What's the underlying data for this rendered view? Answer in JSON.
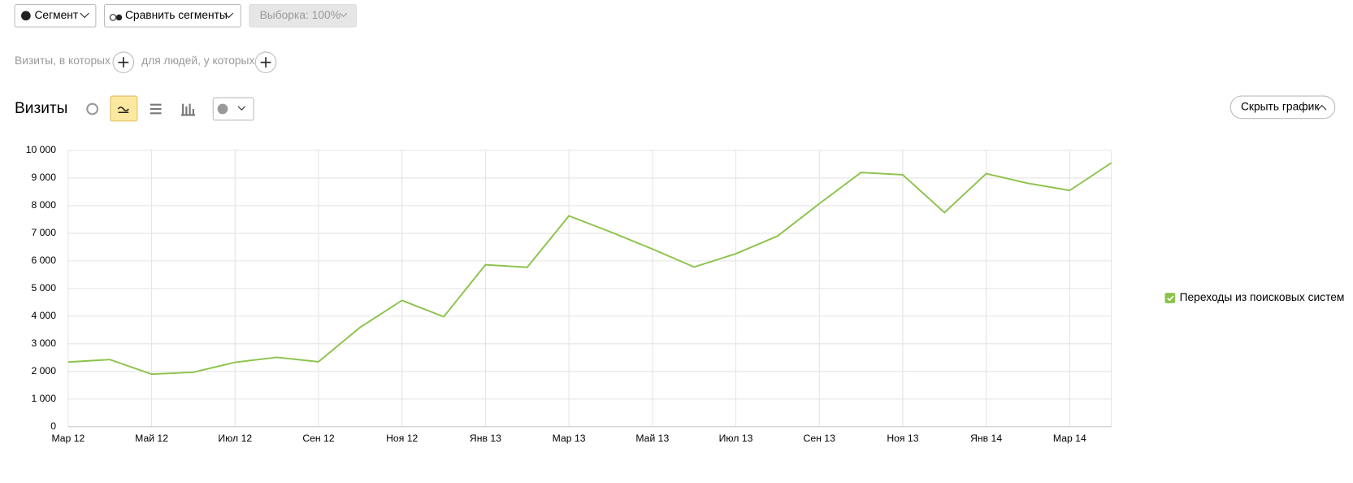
{
  "toolbar": {
    "segment": "Сегмент",
    "compare": "Сравнить сегменты",
    "sample": "Выборка: 100%"
  },
  "filters": {
    "visits": "Визиты, в которых",
    "people": "для людей, у которых"
  },
  "report": {
    "title": "Визиты",
    "hide_button": "Скрыть график"
  },
  "chart_data": {
    "type": "line",
    "categories": [
      "Мар 12",
      null,
      "Май 12",
      null,
      "Июл 12",
      null,
      "Сен 12",
      null,
      "Ноя 12",
      null,
      "Янв 13",
      null,
      "Мар 13",
      null,
      "Май 13",
      null,
      "Июл 13",
      null,
      "Сен 13",
      null,
      "Ноя 13",
      null,
      "Янв 14",
      null,
      "Мар 14",
      null
    ],
    "series": [
      {
        "name": "Переходы из поисковых систем",
        "color": "#8bc34a",
        "values": [
          2340,
          2430,
          1900,
          1970,
          2330,
          2510,
          2350,
          3600,
          4570,
          3980,
          5860,
          5770,
          7630,
          7050,
          6430,
          5780,
          6260,
          6900,
          8070,
          9200,
          9120,
          7750,
          9160,
          8810,
          8550,
          9550
        ]
      }
    ],
    "ylim": [
      0,
      10000
    ],
    "yticks": [
      0,
      {
        "value": 1000,
        "label": "1 000"
      },
      {
        "value": 2000,
        "label": "2 000"
      },
      {
        "value": 3000,
        "label": "3 000"
      },
      {
        "value": 4000,
        "label": "4 000"
      },
      {
        "value": 5000,
        "label": "5 000"
      },
      {
        "value": 6000,
        "label": "6 000"
      },
      {
        "value": 7000,
        "label": "7 000"
      },
      {
        "value": 8000,
        "label": "8 000"
      },
      {
        "value": 9000,
        "label": "9 000"
      },
      {
        "value": 10000,
        "label": "10 000"
      }
    ],
    "grid": true,
    "legend": "right"
  }
}
